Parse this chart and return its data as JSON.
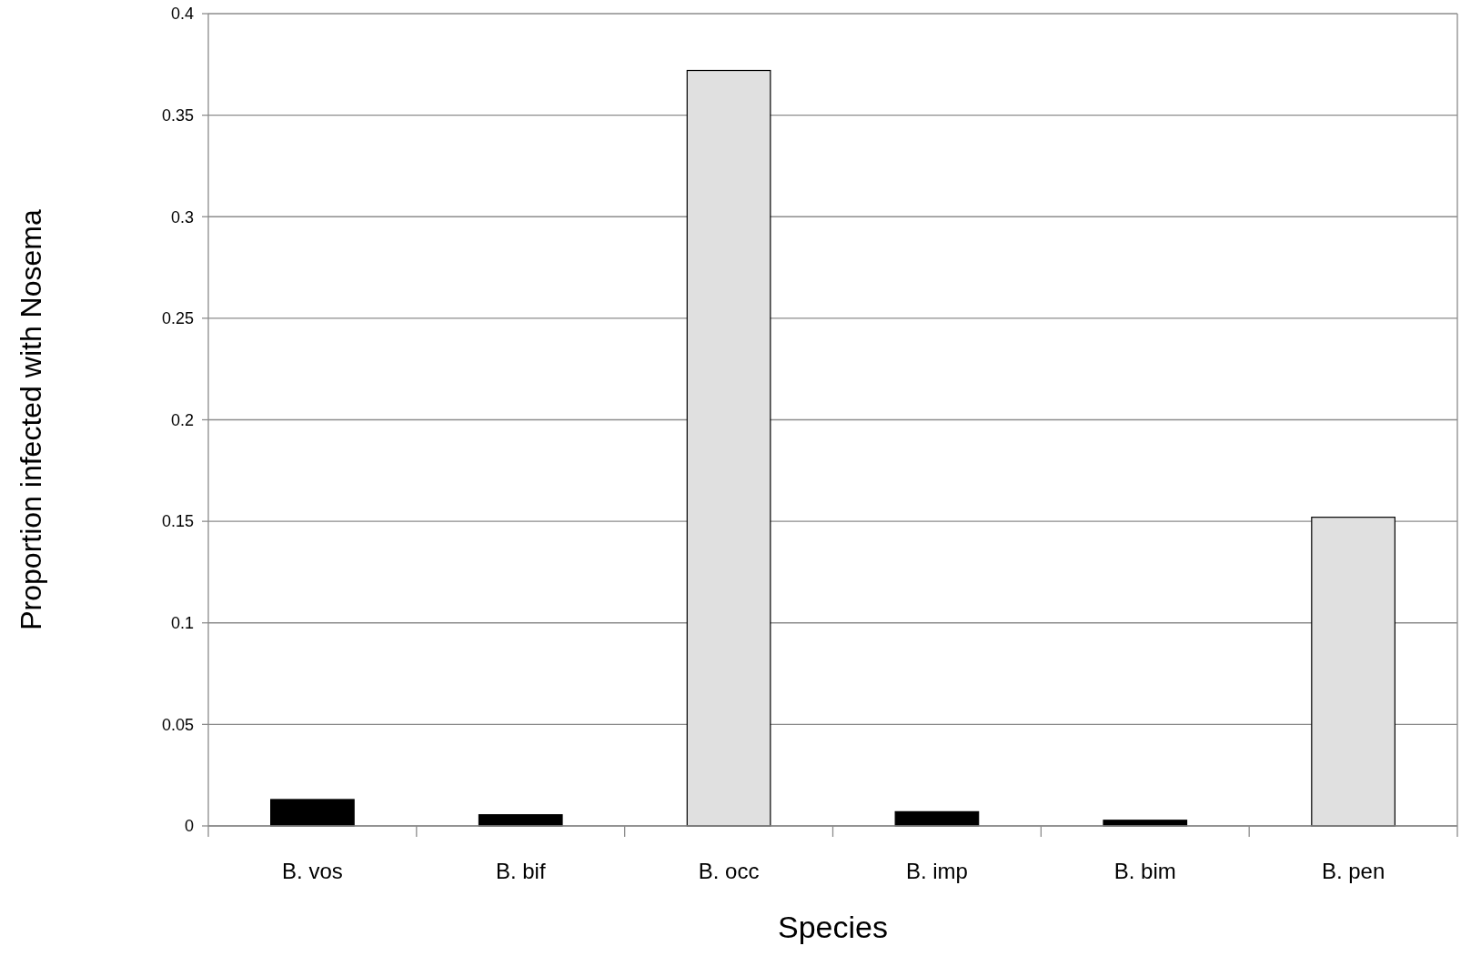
{
  "chart_data": {
    "type": "bar",
    "xlabel": "Species",
    "ylabel": "Proportion infected with Nosema",
    "categories": [
      "B. vos",
      "B. bif",
      "B. occ",
      "B. imp",
      "B. bim",
      "B. pen"
    ],
    "values": [
      0.013,
      0.0055,
      0.372,
      0.007,
      0.0028,
      0.152
    ],
    "colors": [
      "#000000",
      "#000000",
      "#e0e0e0",
      "#000000",
      "#000000",
      "#e0e0e0"
    ],
    "ylim": [
      0,
      0.4
    ],
    "yticks": [
      0,
      0.05,
      0.1,
      0.15,
      0.2,
      0.25,
      0.3,
      0.35,
      0.4
    ],
    "grid": "y"
  }
}
